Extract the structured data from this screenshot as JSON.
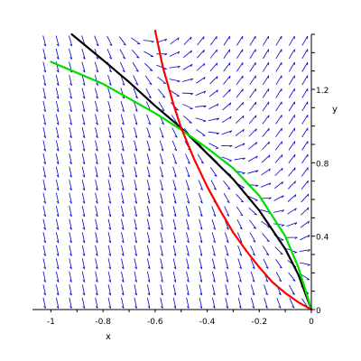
{
  "chart_data": {
    "type": "line",
    "title": "",
    "xlabel": "x",
    "ylabel": "y",
    "xlim": [
      -1.05,
      0.0
    ],
    "ylim": [
      0.0,
      1.5
    ],
    "x_ticks": [
      {
        "value": -1.0,
        "label": "-1"
      },
      {
        "value": -0.8,
        "label": "-0.8"
      },
      {
        "value": -0.6,
        "label": "-0.6"
      },
      {
        "value": -0.4,
        "label": "-0.4"
      },
      {
        "value": -0.2,
        "label": "-0.2"
      },
      {
        "value": 0.0,
        "label": "0"
      }
    ],
    "y_ticks": [
      {
        "value": 0.0,
        "label": "0"
      },
      {
        "value": 0.4,
        "label": "0.4"
      },
      {
        "value": 0.8,
        "label": "0.8"
      },
      {
        "value": 1.2,
        "label": "1.2"
      }
    ],
    "grid": false,
    "direction_field": {
      "color": "#0000cc",
      "nx": 21,
      "ny": 21
    },
    "series": [
      {
        "color": "#000000",
        "x": [
          -0.92,
          -0.8,
          -0.7,
          -0.6,
          -0.5,
          -0.4,
          -0.3,
          -0.2,
          -0.1,
          -0.05,
          0.0
        ],
        "y": [
          1.5,
          1.36,
          1.24,
          1.11,
          0.99,
          0.85,
          0.71,
          0.54,
          0.33,
          0.19,
          0.0
        ]
      },
      {
        "color": "#00dd00",
        "x": [
          -1.0,
          -0.9,
          -0.8,
          -0.7,
          -0.6,
          -0.5,
          -0.4,
          -0.3,
          -0.2,
          -0.1,
          -0.05,
          0.0
        ],
        "y": [
          1.35,
          1.29,
          1.23,
          1.15,
          1.07,
          0.98,
          0.88,
          0.77,
          0.62,
          0.4,
          0.23,
          0.0
        ]
      },
      {
        "color": "#ff0000",
        "x": [
          -0.6,
          -0.57,
          -0.53,
          -0.5,
          -0.45,
          -0.4,
          -0.35,
          -0.3,
          -0.25,
          -0.2,
          -0.15,
          -0.1,
          -0.05,
          0.0
        ],
        "y": [
          1.52,
          1.32,
          1.12,
          0.99,
          0.82,
          0.67,
          0.54,
          0.42,
          0.32,
          0.23,
          0.15,
          0.09,
          0.04,
          0.0
        ]
      }
    ]
  }
}
